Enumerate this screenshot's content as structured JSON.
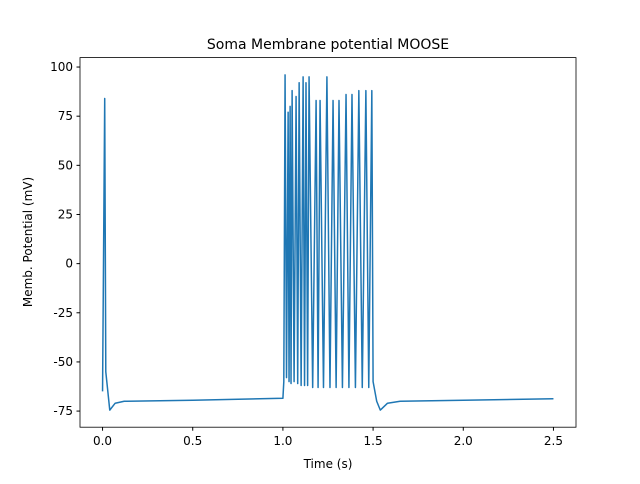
{
  "chart_data": {
    "type": "line",
    "title": "Soma Membrane potential MOOSE",
    "x_label": "Time (s)",
    "y_label": "Memb. Potential (mV)",
    "series": [
      {
        "color": "#1f77b4",
        "x": [
          0,
          0.012,
          0.018,
          0.04,
          0.07,
          0.12,
          0.5,
          1.0,
          1.005,
          1.012,
          1.02,
          1.029,
          1.034,
          1.04,
          1.045,
          1.051,
          1.062,
          1.073,
          1.082,
          1.09,
          1.101,
          1.112,
          1.12,
          1.128,
          1.137,
          1.145,
          1.165,
          1.184,
          1.195,
          1.206,
          1.225,
          1.244,
          1.261,
          1.278,
          1.295,
          1.311,
          1.33,
          1.35,
          1.366,
          1.383,
          1.402,
          1.421,
          1.44,
          1.46,
          1.476,
          1.493,
          1.5,
          1.52,
          1.54,
          1.58,
          1.65,
          2.0,
          2.5
        ],
        "values": [
          -65,
          84,
          -55,
          -74.5,
          -71,
          -70,
          -69.5,
          -68.5,
          -60,
          96,
          -58,
          77,
          -60,
          80,
          -61,
          88,
          -60,
          85,
          -61,
          92,
          -62,
          95,
          -62,
          92,
          -62,
          95,
          -63,
          83,
          -63,
          83,
          -63,
          95,
          -63,
          83,
          -63,
          83,
          -63,
          86,
          -63,
          86,
          -63,
          88,
          -63,
          88,
          -63,
          88,
          -60,
          -70,
          -74.5,
          -71,
          -70,
          -69.5,
          -68.7
        ]
      }
    ],
    "xlim": [
      -0.125,
      2.625
    ],
    "ylim": [
      -83.2,
      104.8
    ],
    "xticks": [
      {
        "value": 0,
        "label": "0.0"
      },
      0.5,
      {
        "value": 1,
        "label": "1.0"
      },
      1.5,
      {
        "value": 2,
        "label": "2.0"
      },
      2.5
    ],
    "yticks": [
      -75,
      -50,
      -25,
      0,
      25,
      50,
      75,
      100
    ],
    "grid": false
  }
}
